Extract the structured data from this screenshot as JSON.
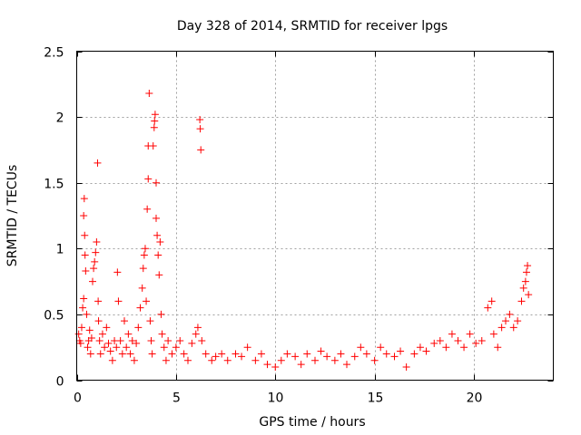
{
  "chart_data": {
    "type": "scatter",
    "title": "Day 328 of 2014, SRMTID for receiver lpgs",
    "xlabel": "GPS time / hours",
    "ylabel": "SRMTID / TECUs",
    "xlim": [
      0,
      24
    ],
    "ylim": [
      0,
      2.5
    ],
    "xticks": [
      0,
      5,
      10,
      15,
      20
    ],
    "xtick_labels": [
      "0",
      "5",
      "10",
      "15",
      "20"
    ],
    "yticks": [
      0,
      0.5,
      1,
      1.5,
      2,
      2.5
    ],
    "ytick_labels": [
      "0",
      "0.5",
      "1",
      "1.5",
      "2",
      "2.5"
    ],
    "grid": true,
    "marker": "+",
    "color": "#ff0000",
    "series": [
      {
        "name": "SRMTID",
        "points": [
          [
            0.1,
            0.35
          ],
          [
            0.15,
            0.3
          ],
          [
            0.2,
            0.28
          ],
          [
            0.25,
            0.4
          ],
          [
            0.3,
            0.55
          ],
          [
            0.35,
            0.62
          ],
          [
            0.35,
            1.25
          ],
          [
            0.38,
            1.38
          ],
          [
            0.4,
            1.1
          ],
          [
            0.42,
            0.95
          ],
          [
            0.45,
            0.83
          ],
          [
            0.5,
            0.5
          ],
          [
            0.55,
            0.25
          ],
          [
            0.6,
            0.3
          ],
          [
            0.65,
            0.38
          ],
          [
            0.7,
            0.2
          ],
          [
            0.75,
            0.32
          ],
          [
            0.8,
            0.75
          ],
          [
            0.85,
            0.85
          ],
          [
            0.9,
            0.9
          ],
          [
            0.95,
            0.97
          ],
          [
            1.0,
            1.05
          ],
          [
            1.05,
            1.65
          ],
          [
            1.08,
            0.6
          ],
          [
            1.1,
            0.45
          ],
          [
            1.15,
            0.3
          ],
          [
            1.2,
            0.2
          ],
          [
            1.3,
            0.35
          ],
          [
            1.4,
            0.25
          ],
          [
            1.5,
            0.4
          ],
          [
            1.6,
            0.28
          ],
          [
            1.7,
            0.22
          ],
          [
            1.8,
            0.15
          ],
          [
            1.9,
            0.3
          ],
          [
            2.0,
            0.25
          ],
          [
            2.05,
            0.82
          ],
          [
            2.1,
            0.6
          ],
          [
            2.2,
            0.3
          ],
          [
            2.3,
            0.2
          ],
          [
            2.4,
            0.45
          ],
          [
            2.5,
            0.25
          ],
          [
            2.6,
            0.35
          ],
          [
            2.7,
            0.2
          ],
          [
            2.8,
            0.3
          ],
          [
            2.9,
            0.15
          ],
          [
            3.0,
            0.28
          ],
          [
            3.1,
            0.4
          ],
          [
            3.2,
            0.55
          ],
          [
            3.3,
            0.7
          ],
          [
            3.35,
            0.85
          ],
          [
            3.4,
            0.95
          ],
          [
            3.45,
            1.0
          ],
          [
            3.5,
            0.6
          ],
          [
            3.55,
            1.3
          ],
          [
            3.6,
            1.53
          ],
          [
            3.6,
            1.78
          ],
          [
            3.65,
            2.18
          ],
          [
            3.7,
            0.45
          ],
          [
            3.75,
            0.3
          ],
          [
            3.8,
            0.2
          ],
          [
            3.85,
            1.78
          ],
          [
            3.9,
            1.92
          ],
          [
            3.92,
            1.97
          ],
          [
            3.95,
            2.02
          ],
          [
            4.0,
            1.5
          ],
          [
            4.0,
            1.23
          ],
          [
            4.05,
            1.1
          ],
          [
            4.1,
            0.95
          ],
          [
            4.15,
            0.8
          ],
          [
            4.2,
            1.05
          ],
          [
            4.25,
            0.5
          ],
          [
            4.3,
            0.35
          ],
          [
            4.4,
            0.25
          ],
          [
            4.5,
            0.15
          ],
          [
            4.6,
            0.3
          ],
          [
            4.8,
            0.2
          ],
          [
            5.0,
            0.25
          ],
          [
            5.2,
            0.3
          ],
          [
            5.4,
            0.2
          ],
          [
            5.6,
            0.15
          ],
          [
            5.8,
            0.28
          ],
          [
            6.0,
            0.35
          ],
          [
            6.1,
            0.4
          ],
          [
            6.2,
            1.98
          ],
          [
            6.22,
            1.91
          ],
          [
            6.25,
            1.75
          ],
          [
            6.3,
            0.3
          ],
          [
            6.5,
            0.2
          ],
          [
            6.8,
            0.15
          ],
          [
            7.0,
            0.18
          ],
          [
            7.3,
            0.2
          ],
          [
            7.6,
            0.15
          ],
          [
            8.0,
            0.2
          ],
          [
            8.3,
            0.18
          ],
          [
            8.6,
            0.25
          ],
          [
            9.0,
            0.15
          ],
          [
            9.3,
            0.2
          ],
          [
            9.6,
            0.12
          ],
          [
            10.0,
            0.1
          ],
          [
            10.3,
            0.15
          ],
          [
            10.6,
            0.2
          ],
          [
            11.0,
            0.18
          ],
          [
            11.3,
            0.12
          ],
          [
            11.6,
            0.2
          ],
          [
            12.0,
            0.15
          ],
          [
            12.3,
            0.22
          ],
          [
            12.6,
            0.18
          ],
          [
            13.0,
            0.15
          ],
          [
            13.3,
            0.2
          ],
          [
            13.6,
            0.12
          ],
          [
            14.0,
            0.18
          ],
          [
            14.3,
            0.25
          ],
          [
            14.6,
            0.2
          ],
          [
            15.0,
            0.15
          ],
          [
            15.3,
            0.25
          ],
          [
            15.6,
            0.2
          ],
          [
            16.0,
            0.18
          ],
          [
            16.3,
            0.22
          ],
          [
            16.6,
            0.1
          ],
          [
            17.0,
            0.2
          ],
          [
            17.3,
            0.25
          ],
          [
            17.6,
            0.22
          ],
          [
            18.0,
            0.28
          ],
          [
            18.3,
            0.3
          ],
          [
            18.6,
            0.25
          ],
          [
            18.9,
            0.35
          ],
          [
            19.2,
            0.3
          ],
          [
            19.5,
            0.25
          ],
          [
            19.8,
            0.35
          ],
          [
            20.1,
            0.28
          ],
          [
            20.4,
            0.3
          ],
          [
            20.7,
            0.55
          ],
          [
            20.9,
            0.6
          ],
          [
            21.0,
            0.35
          ],
          [
            21.2,
            0.25
          ],
          [
            21.4,
            0.4
          ],
          [
            21.6,
            0.45
          ],
          [
            21.8,
            0.5
          ],
          [
            22.0,
            0.4
          ],
          [
            22.2,
            0.45
          ],
          [
            22.4,
            0.6
          ],
          [
            22.5,
            0.7
          ],
          [
            22.6,
            0.75
          ],
          [
            22.65,
            0.82
          ],
          [
            22.7,
            0.87
          ],
          [
            22.75,
            0.65
          ]
        ]
      }
    ]
  }
}
